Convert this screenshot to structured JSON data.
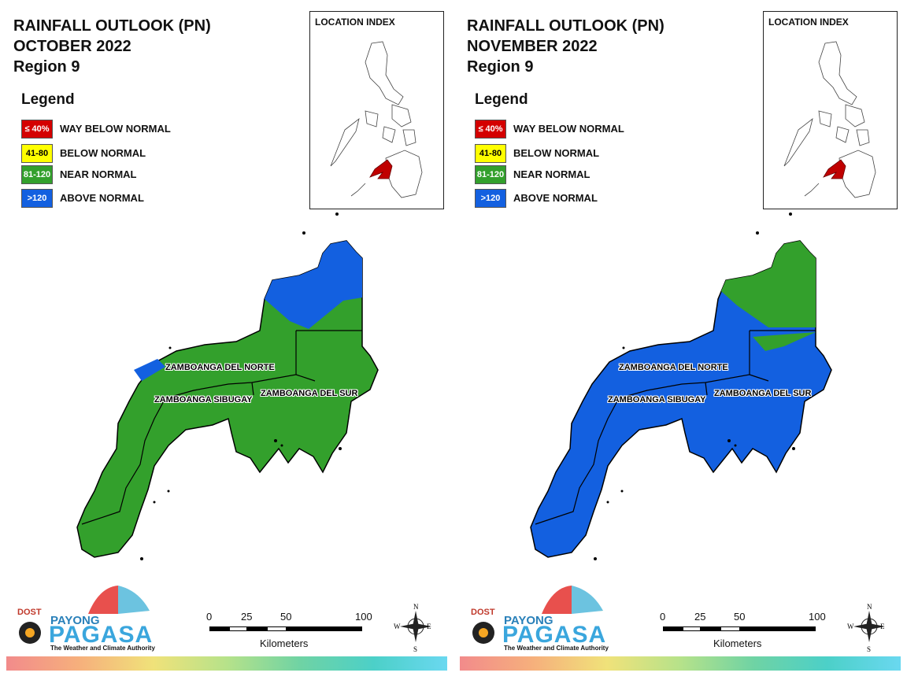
{
  "panels": [
    {
      "title_line1": "RAINFALL OUTLOOK (PN)",
      "title_line2": "OCTOBER 2022",
      "title_line3": "Region 9",
      "provinces": {
        "north": "ZAMBOANGA DEL NORTE",
        "sibugay": "ZAMBOANGA SIBUGAY",
        "south": "ZAMBOANGA DEL SUR"
      },
      "dominant_category": "NEAR NORMAL",
      "dominant_color": "#33a02c"
    },
    {
      "title_line1": "RAINFALL OUTLOOK (PN)",
      "title_line2": "NOVEMBER 2022",
      "title_line3": "Region 9",
      "provinces": {
        "north": "ZAMBOANGA DEL NORTE",
        "sibugay": "ZAMBOANGA SIBUGAY",
        "south": "ZAMBOANGA DEL SUR"
      },
      "dominant_category": "ABOVE NORMAL",
      "dominant_color": "#1360e0"
    }
  ],
  "legend": {
    "heading": "Legend",
    "items": [
      {
        "range": "≤ 40%",
        "label": "WAY BELOW NORMAL",
        "color": "#d40000",
        "text_color": "#ffffff"
      },
      {
        "range": "41-80",
        "label": "BELOW NORMAL",
        "color": "#ffff00",
        "text_color": "#000000"
      },
      {
        "range": "81-120",
        "label": "NEAR NORMAL",
        "color": "#33a02c",
        "text_color": "#ffffff"
      },
      {
        "range": ">120",
        "label": "ABOVE NORMAL",
        "color": "#1360e0",
        "text_color": "#ffffff"
      }
    ]
  },
  "location_index": {
    "title": "LOCATION INDEX",
    "highlight_color": "#c00000"
  },
  "scale_bar": {
    "ticks": [
      "0",
      "25",
      "50",
      "100"
    ],
    "units": "Kilometers"
  },
  "compass": {
    "n": "N",
    "s": "S",
    "e": "E",
    "w": "W"
  },
  "logo": {
    "agency": "DOST",
    "brand1": "PAYONG",
    "brand2": "PAGASA",
    "tagline": "The Weather and Climate Authority"
  }
}
